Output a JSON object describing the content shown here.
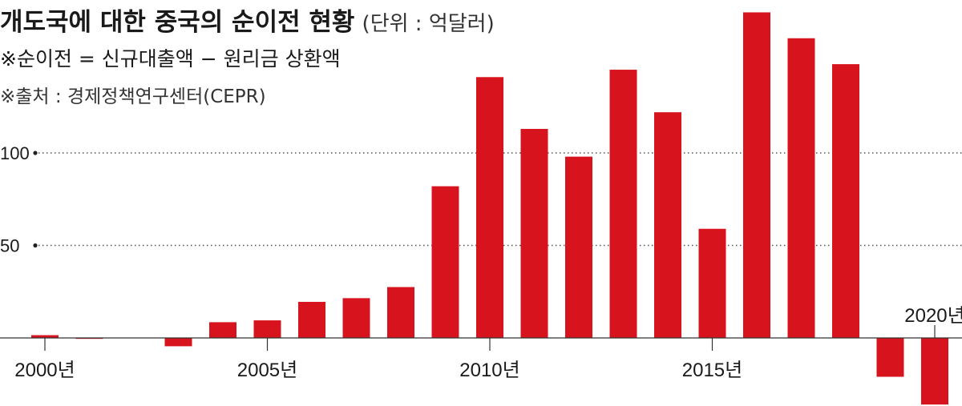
{
  "header": {
    "title": "개도국에 대한 중국의 순이전 현황",
    "unit": "(단위 : 억달러)",
    "formula": "※순이전 = 신규대출액 − 원리금 상환액",
    "source": "※출처 : 경제정책연구센터(CEPR)"
  },
  "colors": {
    "bar": "#d7141e",
    "grid": "#555555",
    "axis": "#333333"
  },
  "chart_data": {
    "type": "bar",
    "categories": [
      "2000",
      "2001",
      "2002",
      "2003",
      "2004",
      "2005",
      "2006",
      "2007",
      "2008",
      "2009",
      "2010",
      "2011",
      "2012",
      "2013",
      "2014",
      "2015",
      "2016",
      "2017",
      "2018",
      "2019",
      "2020"
    ],
    "values": [
      1.5,
      -0.5,
      0,
      -4.5,
      8.5,
      9.5,
      19.5,
      21.5,
      27.5,
      82,
      141,
      113,
      98,
      145,
      122,
      59,
      176,
      162,
      148,
      -21,
      -36
    ],
    "ylim": [
      -40,
      180
    ],
    "yticks": [
      50,
      100
    ],
    "ytick_labels": [
      "50",
      "100"
    ],
    "xtick_labels": [
      {
        "category": "2000",
        "label": "2000년"
      },
      {
        "category": "2005",
        "label": "2005년"
      },
      {
        "category": "2010",
        "label": "2010년"
      },
      {
        "category": "2015",
        "label": "2015년"
      },
      {
        "category": "2020",
        "label": "2020년",
        "position": "above"
      }
    ],
    "grid": "dotted horizontal at ticks",
    "legend": "none"
  }
}
